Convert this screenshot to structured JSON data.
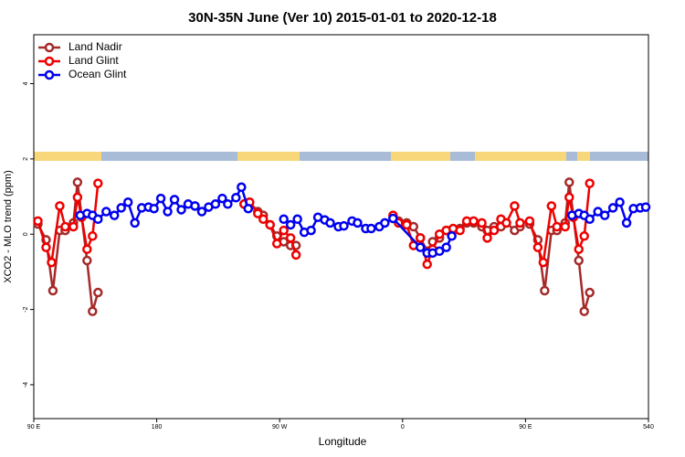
{
  "chart_data": {
    "type": "line",
    "title": "30N-35N June (Ver 10)   2015-01-01 to 2020-12-18",
    "x_label": "Longitude",
    "y_label": "XCO2 - MLO trend (ppm)",
    "xlim": [
      90,
      540
    ],
    "xticks": [
      {
        "value": 90,
        "label": "90 E"
      },
      180,
      {
        "value": 270,
        "label": "90 W"
      },
      {
        "value": 360,
        "label": "0"
      },
      {
        "value": 450,
        "label": "90 E"
      },
      540
    ],
    "ylim": [
      -4.9,
      5.3
    ],
    "yticks": [
      -4,
      -2,
      0,
      2,
      4
    ],
    "legend": "topleft",
    "series": [
      {
        "name": "Land Nadir",
        "color": "#a52a2a",
        "x": [
          93,
          99,
          104,
          109,
          113,
          119,
          122,
          129,
          133,
          137,
          null,
          244,
          248,
          254,
          258,
          263,
          268,
          273,
          278,
          282,
          null,
          353,
          357,
          363,
          368,
          373,
          378,
          382,
          387,
          392,
          397,
          402,
          407,
          412,
          418,
          422,
          427,
          432,
          436,
          442,
          446,
          null,
          453,
          459,
          464,
          469,
          473,
          479,
          482,
          489,
          493,
          497
        ],
        "values": [
          0.27,
          -0.15,
          -1.5,
          0.1,
          0.1,
          0.3,
          1.38,
          -0.7,
          -2.05,
          -1.55,
          null,
          0.8,
          0.85,
          0.6,
          0.5,
          0.25,
          -0.05,
          -0.2,
          -0.3,
          -0.3,
          null,
          0.45,
          0.35,
          0.3,
          0.2,
          -0.1,
          -0.45,
          -0.2,
          -0.1,
          0.1,
          0.1,
          0.15,
          0.3,
          0.3,
          0.2,
          0.1,
          0.2,
          0.2,
          0.3,
          0.1,
          0.2,
          null,
          0.27,
          -0.15,
          -1.5,
          0.1,
          0.1,
          0.3,
          1.38,
          -0.7,
          -2.05,
          -1.55
        ]
      },
      {
        "name": "Land Glint",
        "color": "#ee0000",
        "x": [
          93,
          99,
          103,
          109,
          113,
          119,
          122,
          125,
          129,
          133,
          137,
          null,
          244,
          248,
          254,
          258,
          263,
          268,
          273,
          278,
          282,
          null,
          353,
          357,
          363,
          368,
          373,
          378,
          382,
          387,
          392,
          397,
          402,
          407,
          412,
          418,
          422,
          427,
          432,
          436,
          442,
          446,
          453,
          459,
          463,
          469,
          473,
          479,
          482,
          485,
          489,
          493,
          497
        ],
        "values": [
          0.35,
          -0.35,
          -0.75,
          0.75,
          0.2,
          0.2,
          0.98,
          0.45,
          -0.4,
          -0.05,
          1.35,
          null,
          0.8,
          0.85,
          0.55,
          0.4,
          0.25,
          -0.25,
          0.1,
          -0.1,
          -0.55,
          null,
          0.5,
          0.3,
          0.25,
          -0.3,
          -0.1,
          -0.8,
          -0.4,
          0,
          0.1,
          0.15,
          0.1,
          0.35,
          0.35,
          0.3,
          -0.1,
          0.1,
          0.4,
          0.3,
          0.75,
          0.3,
          0.35,
          -0.35,
          -0.75,
          0.75,
          0.2,
          0.2,
          0.98,
          0.45,
          -0.4,
          -0.05,
          1.35
        ]
      },
      {
        "name": "Ocean Glint",
        "color": "#0000ee",
        "x": [
          124,
          129,
          133,
          137,
          143,
          149,
          154,
          159,
          164,
          169,
          174,
          178,
          183,
          188,
          193,
          198,
          203,
          208,
          213,
          218,
          223,
          228,
          232,
          238,
          242,
          247,
          null,
          273,
          278,
          283,
          288,
          293,
          298,
          303,
          307,
          313,
          317,
          323,
          327,
          333,
          337,
          343,
          347,
          353,
          373,
          378,
          382,
          387,
          392,
          396,
          null,
          484,
          489,
          493,
          497,
          503,
          508,
          514,
          519,
          524,
          529,
          534,
          538
        ],
        "values": [
          0.5,
          0.55,
          0.5,
          0.4,
          0.6,
          0.5,
          0.7,
          0.85,
          0.3,
          0.7,
          0.72,
          0.68,
          0.95,
          0.6,
          0.92,
          0.65,
          0.8,
          0.75,
          0.6,
          0.72,
          0.8,
          0.95,
          0.8,
          0.97,
          1.25,
          0.68,
          null,
          0.4,
          0.25,
          0.4,
          0.05,
          0.1,
          0.45,
          0.38,
          0.3,
          0.2,
          0.22,
          0.35,
          0.3,
          0.15,
          0.15,
          0.2,
          0.3,
          0.42,
          -0.35,
          -0.5,
          -0.5,
          -0.45,
          -0.35,
          -0.05,
          null,
          0.5,
          0.55,
          0.5,
          0.4,
          0.6,
          0.5,
          0.7,
          0.85,
          0.3,
          0.68,
          0.7,
          0.72
        ]
      }
    ]
  }
}
